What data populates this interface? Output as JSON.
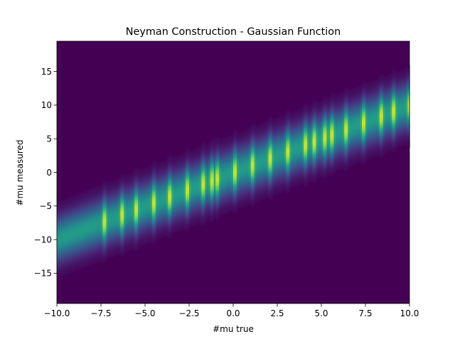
{
  "chart_data": {
    "type": "heatmap",
    "title": "Neyman Construction - Gaussian Function",
    "xlabel": "#mu true",
    "ylabel": "#mu measured",
    "xlim": [
      -10,
      10
    ],
    "ylim": [
      -19.5,
      19.5
    ],
    "x_ticks": [
      -10,
      -7.5,
      -5,
      -2.5,
      0,
      2.5,
      5,
      7.5,
      10
    ],
    "x_tick_labels": [
      "−10.0",
      "−7.5",
      "−5.0",
      "−2.5",
      "0.0",
      "2.5",
      "5.0",
      "7.5",
      "10.0"
    ],
    "y_ticks": [
      -15,
      -10,
      -5,
      0,
      5,
      10,
      15
    ],
    "y_tick_labels": [
      "−15",
      "−10",
      "−5",
      "0",
      "5",
      "10",
      "15"
    ],
    "colormap": "viridis",
    "grid": false,
    "legend": "none",
    "ridge": {
      "slope": 1.0,
      "intercept": 0.0,
      "sigma": 2.2
    },
    "hot_columns_mu_true": [
      -7.3,
      -6.3,
      -5.5,
      -4.5,
      -3.6,
      -2.6,
      -1.7,
      -1.2,
      -0.9,
      0.1,
      1.1,
      2.1,
      3.1,
      4.1,
      4.6,
      5.2,
      5.6,
      6.4,
      7.4,
      8.4,
      9.1,
      10.0
    ]
  }
}
